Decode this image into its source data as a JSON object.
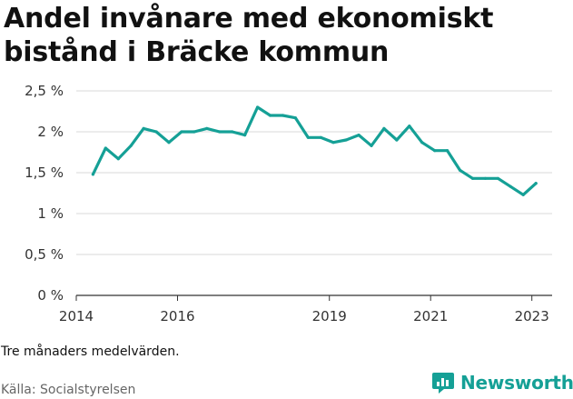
{
  "title": "Andel invånare med ekonomiskt bistånd i Bräcke kommun",
  "note": "Tre månaders medelvärden.",
  "source": "Källa: Socialstyrelsen",
  "brand": {
    "name": "Newsworthy",
    "color": "#15a096",
    "icon": "newsworthy-logo-icon"
  },
  "chart_data": {
    "type": "line",
    "title": "Andel invånare med ekonomiskt bistånd i Bräcke kommun",
    "xlabel": "",
    "ylabel": "",
    "ylim": [
      0,
      2.5
    ],
    "yticks": [
      0,
      0.5,
      1,
      1.5,
      2,
      2.5
    ],
    "ytick_labels": [
      "0 %",
      "0,5 %",
      "1 %",
      "1,5 %",
      "2 %",
      "2,5 %"
    ],
    "xlim": [
      2014,
      2023.4
    ],
    "xticks": [
      2014,
      2016,
      2019,
      2021,
      2023
    ],
    "xtick_labels": [
      "2014",
      "2016",
      "2019",
      "2021",
      "2023"
    ],
    "grid": true,
    "line_color": "#15a096",
    "series": [
      {
        "x": [
          2014.33,
          2014.58,
          2014.83,
          2015.08,
          2015.33,
          2015.58,
          2015.83,
          2016.08,
          2016.33,
          2016.58,
          2016.83,
          2017.08,
          2017.33,
          2017.58,
          2017.83,
          2018.08,
          2018.33,
          2018.58,
          2018.83,
          2019.08,
          2019.33,
          2019.58,
          2019.83,
          2020.08,
          2020.33,
          2020.58,
          2020.83,
          2021.08,
          2021.33,
          2021.58,
          2021.83,
          2022.08,
          2022.33,
          2022.58,
          2022.83,
          2023.08
        ],
        "values": [
          1.48,
          1.8,
          1.67,
          1.83,
          2.04,
          2.0,
          1.87,
          2.0,
          2.0,
          2.04,
          2.0,
          2.0,
          1.96,
          2.3,
          2.2,
          2.2,
          2.17,
          1.93,
          1.93,
          1.87,
          1.9,
          1.96,
          1.83,
          2.04,
          1.9,
          2.07,
          1.87,
          1.77,
          1.77,
          1.53,
          1.43,
          1.43,
          1.43,
          1.33,
          1.23,
          1.37
        ]
      }
    ]
  }
}
